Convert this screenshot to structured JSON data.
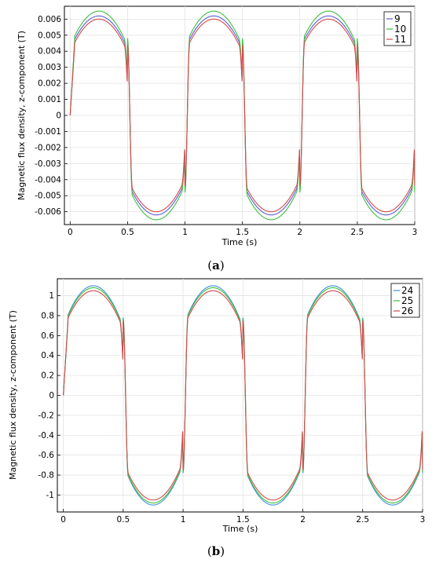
{
  "chart_data": [
    {
      "type": "line",
      "caption_open": "(",
      "caption_letter": "a",
      "caption_close": ")",
      "xlabel": "Time (s)",
      "ylabel": "Magnetic flux density, z-component (T)",
      "xlim": [
        -0.05,
        3.0
      ],
      "ylim": [
        -0.0068,
        0.0068
      ],
      "xticks": [
        "0",
        "0.5",
        "1",
        "1.5",
        "2",
        "2.5",
        "3"
      ],
      "yticks": [
        "0.006",
        "0.005",
        "0.004",
        "0.003",
        "0.002",
        "0.001",
        "0",
        "-0.001",
        "-0.002",
        "-0.003",
        "-0.004",
        "-0.005",
        "-0.006"
      ],
      "grid": true,
      "legend_position": "top-right",
      "waveform": {
        "shape": "square-like alternating with period 1 s",
        "plateau_start": 0.04,
        "plateau_end": 0.47,
        "transition_end": 0.55,
        "x_end": 3.0
      },
      "series": [
        {
          "name": "9",
          "color": "#5b5bd6",
          "peak": 0.0062,
          "edge": 0.0046
        },
        {
          "name": "10",
          "color": "#3cbf3c",
          "peak": 0.0065,
          "edge": 0.0048
        },
        {
          "name": "11",
          "color": "#d24b4b",
          "peak": 0.006,
          "edge": 0.0044
        }
      ]
    },
    {
      "type": "line",
      "caption_open": "(",
      "caption_letter": "b",
      "caption_close": ")",
      "xlabel": "Time (s)",
      "ylabel": "Magnetic flux density, z-component (T)",
      "xlim": [
        -0.05,
        3.0
      ],
      "ylim": [
        -1.17,
        1.17
      ],
      "xticks": [
        "0",
        "0.5",
        "1",
        "1.5",
        "2",
        "2.5",
        "3"
      ],
      "yticks": [
        "1",
        "0.8",
        "0.6",
        "0.4",
        "0.2",
        "0",
        "-0.2",
        "-0.4",
        "-0.6",
        "-0.8",
        "-1"
      ],
      "grid": true,
      "legend_position": "top-right",
      "waveform": {
        "shape": "square-like alternating with period 1 s",
        "plateau_start": 0.04,
        "plateau_end": 0.47,
        "transition_end": 0.55,
        "x_end": 3.0
      },
      "series": [
        {
          "name": "24",
          "color": "#3d8fd6",
          "peak": 1.1,
          "edge": 0.78
        },
        {
          "name": "25",
          "color": "#3cbf3c",
          "peak": 1.08,
          "edge": 0.77
        },
        {
          "name": "26",
          "color": "#d24b4b",
          "peak": 1.05,
          "edge": 0.75
        }
      ]
    }
  ]
}
